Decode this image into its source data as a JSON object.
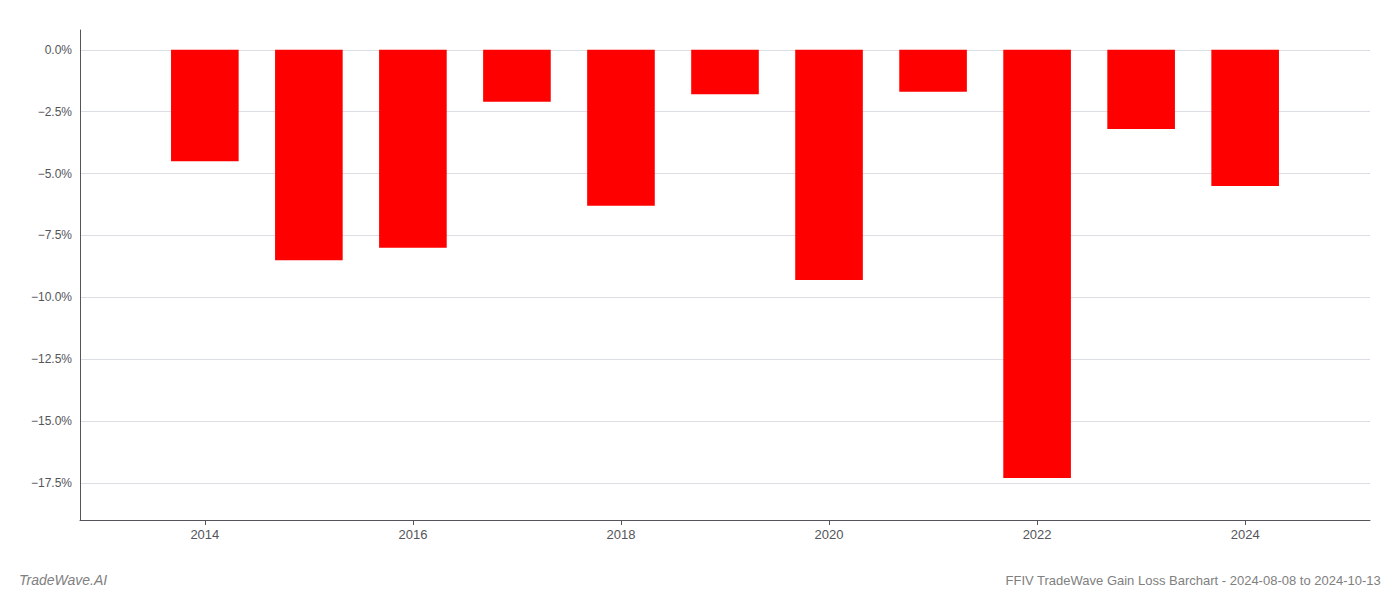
{
  "chart_data": {
    "type": "bar",
    "title": "FFIV TradeWave Gain Loss Barchart - 2024-08-08 to 2024-10-13",
    "annotations": [
      "TradeWave.AI"
    ],
    "x": [
      2014,
      2015,
      2016,
      2017,
      2018,
      2019,
      2020,
      2021,
      2022,
      2023,
      2024
    ],
    "values": [
      -4.5,
      -8.5,
      -8.0,
      -2.1,
      -6.3,
      -1.8,
      -9.3,
      -1.7,
      -17.3,
      -3.2,
      -5.5
    ],
    "color": "#ff0000",
    "xlim": [
      2012.8,
      2025.2
    ],
    "xticks": [
      2014,
      2016,
      2018,
      2020,
      2022,
      2024
    ],
    "ylim": [
      -19.0,
      0.8
    ],
    "yticks": [
      {
        "value": 0.0,
        "label": "0.0%"
      },
      {
        "value": -2.5,
        "label": "−2.5%"
      },
      {
        "value": -5.0,
        "label": "−5.0%"
      },
      {
        "value": -7.5,
        "label": "−7.5%"
      },
      {
        "value": -10.0,
        "label": "−10.0%"
      },
      {
        "value": -12.5,
        "label": "−12.5%"
      },
      {
        "value": -15.0,
        "label": "−15.0%"
      },
      {
        "value": -17.5,
        "label": "−17.5%"
      }
    ],
    "grid": true
  }
}
